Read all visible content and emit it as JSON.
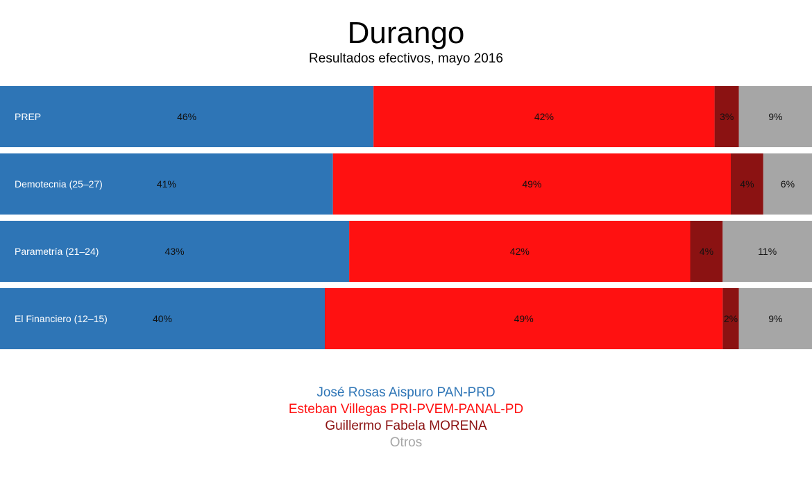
{
  "title": "Durango",
  "subtitle": "Resultados efectivos, mayo 2016",
  "colors": {
    "pan_prd": "#2e75b6",
    "pri": "#ff1111",
    "morena": "#8b1212",
    "otros": "#a6a6a6"
  },
  "chart_data": {
    "type": "bar",
    "orientation": "horizontal",
    "stacked": true,
    "normalized": true,
    "title": "Durango",
    "subtitle": "Resultados efectivos, mayo 2016",
    "categories": [
      "PREP",
      "Demotecnia (25–27)",
      "Parametría (21–24)",
      "El Financiero (12–15)"
    ],
    "series": [
      {
        "name": "José Rosas Aispuro PAN-PRD",
        "color": "#2e75b6",
        "values": [
          46,
          41,
          43,
          40
        ],
        "labels": [
          "46%",
          "41%",
          "43%",
          "40%"
        ]
      },
      {
        "name": "Esteban Villegas PRI-PVEM-PANAL-PD",
        "color": "#ff1111",
        "values": [
          42,
          49,
          42,
          49
        ],
        "labels": [
          "42%",
          "49%",
          "42%",
          "49%"
        ]
      },
      {
        "name": "Guillermo Fabela MORENA",
        "color": "#8b1212",
        "values": [
          3,
          4,
          4,
          2
        ],
        "labels": [
          "3%",
          "4%",
          "4%",
          "2%"
        ]
      },
      {
        "name": "Otros",
        "color": "#a6a6a6",
        "values": [
          9,
          6,
          11,
          9
        ],
        "labels": [
          "9%",
          "6%",
          "11%",
          "9%"
        ]
      }
    ],
    "legend_position": "bottom",
    "grid": false
  }
}
